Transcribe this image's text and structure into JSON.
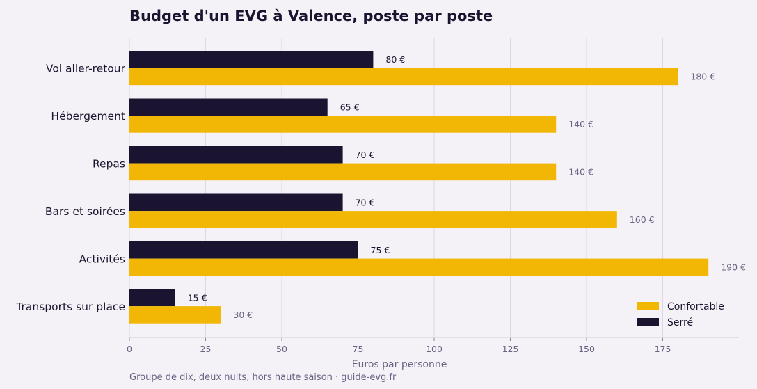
{
  "chart_data": {
    "type": "bar",
    "orientation": "horizontal",
    "title": "Budget d'un EVG à Valence, poste par poste",
    "xlabel": "Euros par personne",
    "caption": "Groupe de dix, deux nuits, hors haute saison · guide-evg.fr",
    "categories": [
      "Vol aller-retour",
      "Hébergement",
      "Repas",
      "Bars et soirées",
      "Activités",
      "Transports sur place"
    ],
    "series": [
      {
        "name": "Serré",
        "color": "#1b1430",
        "values": [
          80,
          65,
          70,
          70,
          75,
          15
        ],
        "labels": [
          "80 €",
          "65 €",
          "70 €",
          "70 €",
          "75 €",
          "15 €"
        ]
      },
      {
        "name": "Confortable",
        "color": "#f2b705",
        "values": [
          180,
          140,
          140,
          160,
          190,
          30
        ],
        "labels": [
          "180 €",
          "140 €",
          "140 €",
          "160 €",
          "190 €",
          "30 €"
        ]
      }
    ],
    "xlim": [
      0,
      200
    ],
    "xticks": [
      0,
      25,
      50,
      75,
      100,
      125,
      150,
      175
    ],
    "grid": true,
    "legend_position": "bottom-right",
    "legend_order": [
      "Confortable",
      "Serré"
    ]
  }
}
